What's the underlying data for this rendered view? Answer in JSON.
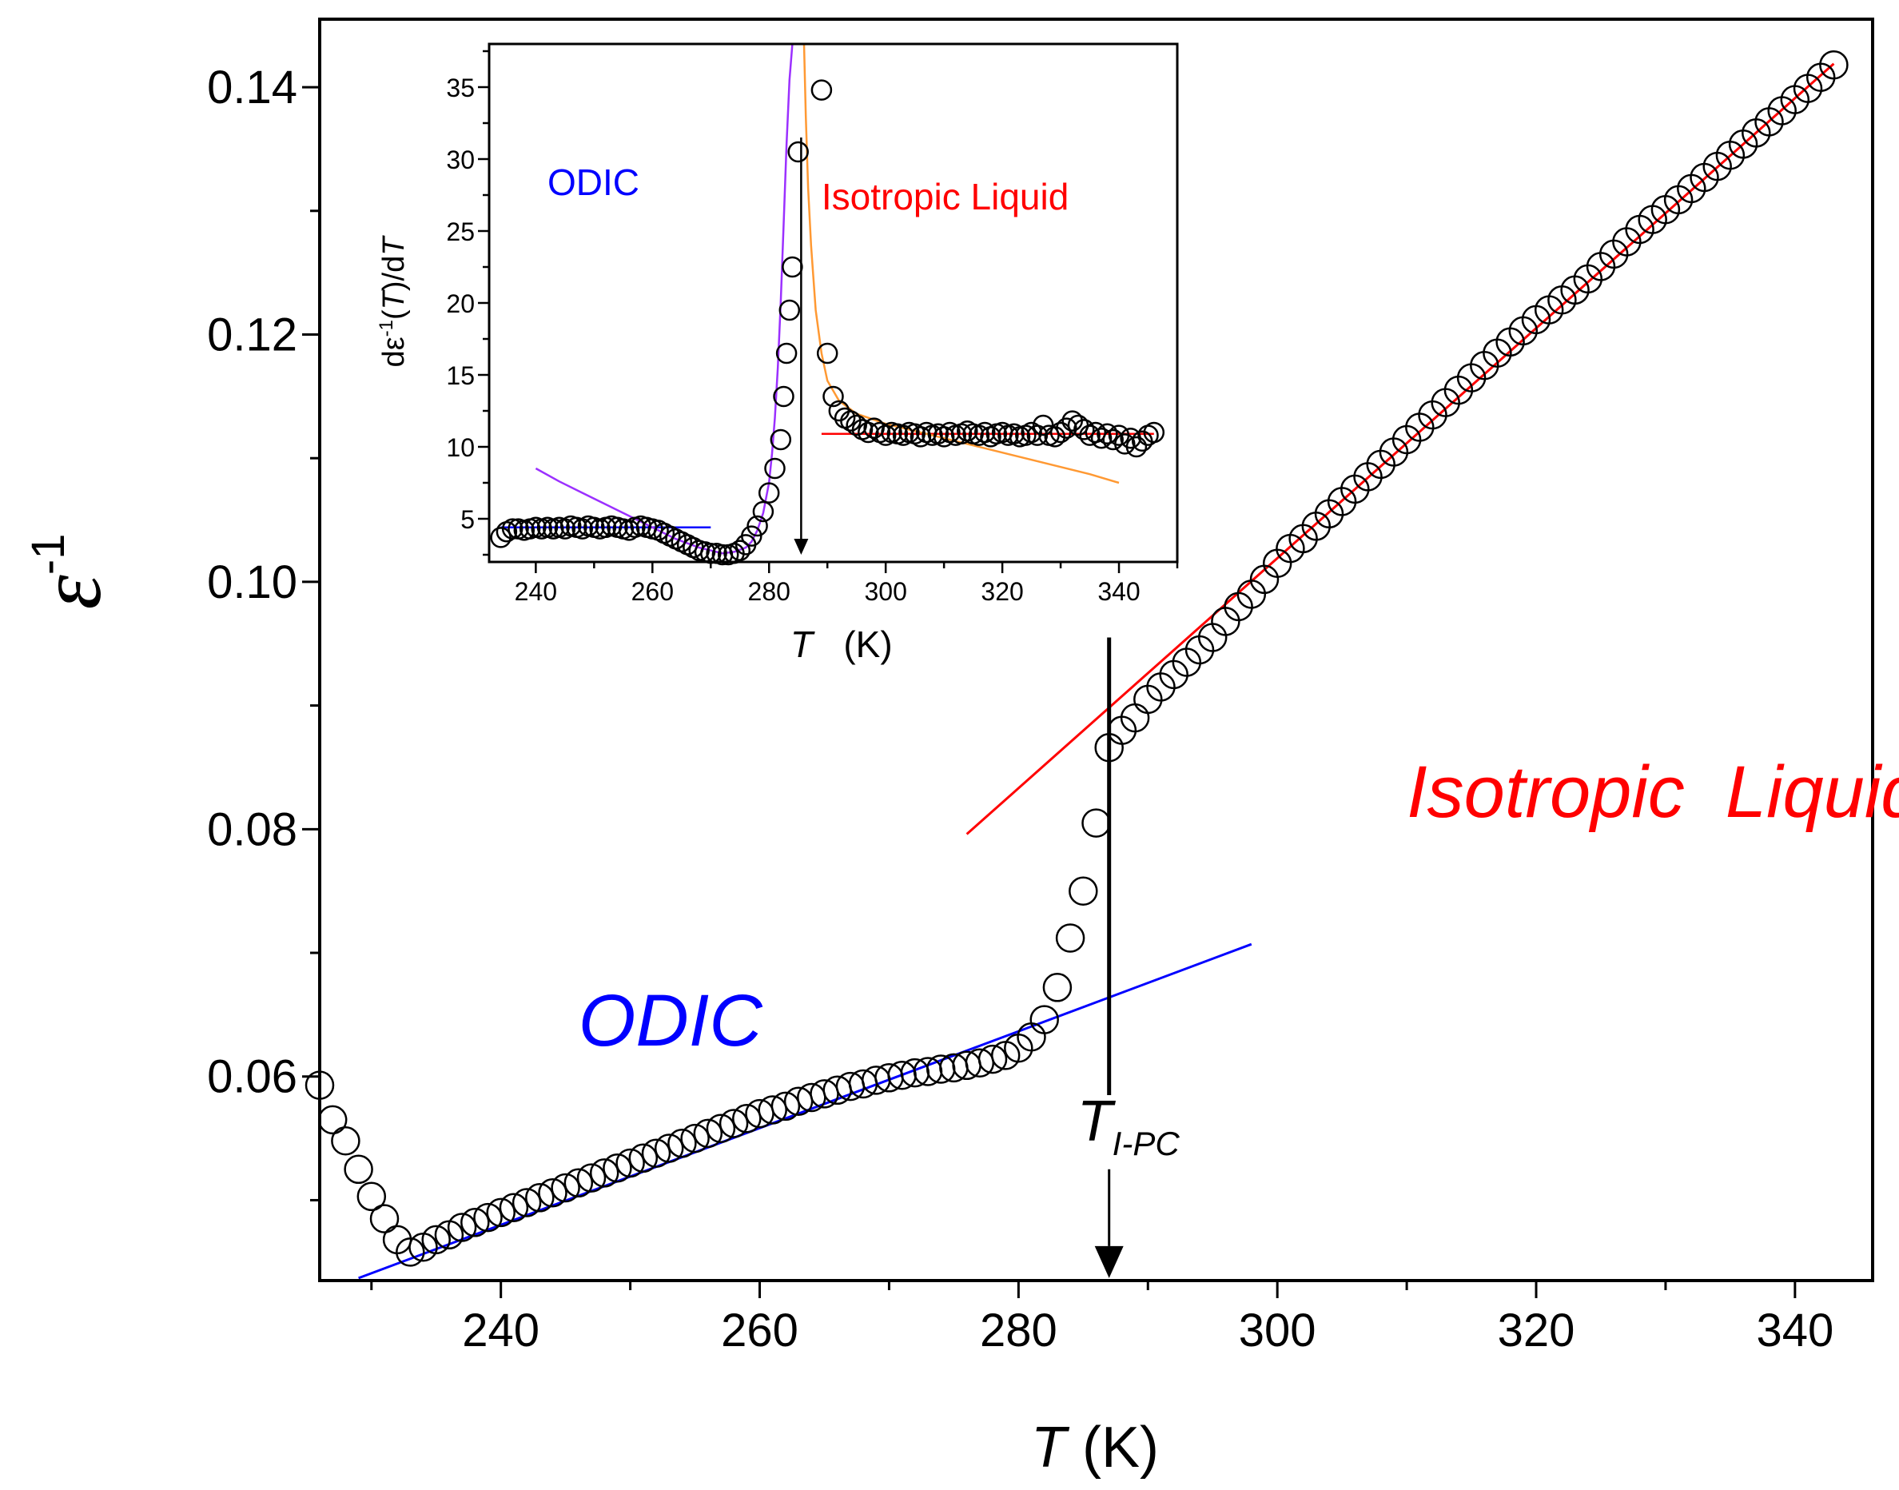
{
  "chart_data": [
    {
      "name": "main",
      "type": "scatter",
      "xlabel": {
        "italic": "T",
        "rest": " (K)"
      },
      "ylabel": {
        "base": "ε",
        "sup": "-1"
      },
      "xlim": [
        226,
        346
      ],
      "ylim": [
        0.0435,
        0.1455
      ],
      "xticks": [
        240,
        260,
        280,
        300,
        320,
        340
      ],
      "yticks": [
        0.06,
        0.08,
        0.1,
        0.12,
        0.14
      ],
      "ytick_labels": [
        "0.06",
        "0.08",
        "0.10",
        "0.12",
        "0.14"
      ],
      "series": [
        {
          "name": "data",
          "x": [
            226,
            227,
            228,
            229,
            230,
            231,
            232,
            233,
            234,
            235,
            236,
            237,
            238,
            239,
            240,
            241,
            242,
            243,
            244,
            245,
            246,
            247,
            248,
            249,
            250,
            251,
            252,
            253,
            254,
            255,
            256,
            257,
            258,
            259,
            260,
            261,
            262,
            263,
            264,
            265,
            266,
            267,
            268,
            269,
            270,
            271,
            272,
            273,
            274,
            275,
            276,
            277,
            278,
            279,
            280,
            281,
            282,
            283,
            284,
            285,
            286,
            287,
            288,
            289,
            290,
            291,
            292,
            293,
            294,
            295,
            296,
            297,
            298,
            299,
            300,
            301,
            302,
            303,
            304,
            305,
            306,
            307,
            308,
            309,
            310,
            311,
            312,
            313,
            314,
            315,
            316,
            317,
            318,
            319,
            320,
            321,
            322,
            323,
            324,
            325,
            326,
            327,
            328,
            329,
            330,
            331,
            332,
            333,
            334,
            335,
            336,
            337,
            338,
            339,
            340,
            341,
            342,
            343
          ],
          "y": [
            0.0593,
            0.0565,
            0.0548,
            0.0525,
            0.0503,
            0.0485,
            0.0468,
            0.0458,
            0.0462,
            0.0468,
            0.0472,
            0.0478,
            0.0482,
            0.0486,
            0.049,
            0.0494,
            0.0498,
            0.0502,
            0.0506,
            0.051,
            0.0514,
            0.0518,
            0.0522,
            0.0526,
            0.053,
            0.0534,
            0.0538,
            0.0542,
            0.0546,
            0.055,
            0.0554,
            0.0558,
            0.0562,
            0.0566,
            0.057,
            0.0573,
            0.0576,
            0.058,
            0.0583,
            0.0586,
            0.0589,
            0.0592,
            0.0594,
            0.0597,
            0.0599,
            0.0601,
            0.0603,
            0.0604,
            0.0606,
            0.0607,
            0.0609,
            0.0611,
            0.0614,
            0.0617,
            0.0623,
            0.0632,
            0.0646,
            0.0672,
            0.0712,
            0.075,
            0.0805,
            0.0866,
            0.088,
            0.089,
            0.0905,
            0.0915,
            0.0925,
            0.0935,
            0.0945,
            0.0955,
            0.0968,
            0.098,
            0.099,
            0.1002,
            0.1015,
            0.1027,
            0.1035,
            0.1045,
            0.1055,
            0.1065,
            0.1075,
            0.1085,
            0.1095,
            0.1105,
            0.1115,
            0.1125,
            0.1135,
            0.1145,
            0.1155,
            0.1165,
            0.1175,
            0.1185,
            0.1194,
            0.1203,
            0.1212,
            0.122,
            0.1228,
            0.1236,
            0.1245,
            0.1255,
            0.1265,
            0.1275,
            0.1285,
            0.1293,
            0.1301,
            0.1309,
            0.1318,
            0.1327,
            0.1336,
            0.1345,
            0.1354,
            0.1363,
            0.1372,
            0.1381,
            0.139,
            0.1399,
            0.1408,
            0.1418
          ]
        },
        {
          "name": "ODIC fit",
          "color": "#0000ff",
          "x": [
            229,
            298
          ],
          "y": [
            0.0437,
            0.0707
          ]
        },
        {
          "name": "Isotropic Liquid fit",
          "color": "#ff0000",
          "x": [
            276,
            343
          ],
          "y": [
            0.0796,
            0.1419
          ]
        }
      ],
      "annotations": [
        {
          "text": "ODIC",
          "color": "#0000ff",
          "x": 246,
          "y": 0.0625
        },
        {
          "text": "Isotropic  Liquid",
          "color": "#ff0000",
          "x": 310,
          "y": 0.081
        },
        {
          "text": "T",
          "sub": "I-PC",
          "color": "#000000",
          "x": 287,
          "y": 0.0548
        },
        {
          "type": "vline",
          "x": 287,
          "y_from": 0.0955,
          "y_to": 0.0585
        },
        {
          "type": "arrow",
          "x": 287,
          "y_from": 0.0525,
          "y_to": 0.0437
        }
      ]
    },
    {
      "name": "inset",
      "type": "scatter",
      "xlabel": {
        "italic": "T",
        "rest": "   (K)"
      },
      "ylabel": {
        "prefix": "dε",
        "sup": "-1",
        "mid": "(",
        "italic": "T",
        "mid2": ")/d",
        "italic2": "T"
      },
      "xlim": [
        232,
        350
      ],
      "ylim": [
        2,
        38
      ],
      "xticks": [
        240,
        260,
        280,
        300,
        320,
        340
      ],
      "yticks": [
        5,
        10,
        15,
        20,
        25,
        30,
        35
      ],
      "series": [
        {
          "name": "data",
          "x": [
            234,
            235,
            236,
            237,
            238,
            239,
            240,
            241,
            242,
            243,
            244,
            245,
            246,
            247,
            248,
            249,
            250,
            251,
            252,
            253,
            254,
            255,
            256,
            257,
            258,
            259,
            260,
            261,
            262,
            263,
            264,
            265,
            266,
            267,
            268,
            269,
            270,
            271,
            272,
            273,
            274,
            275,
            276,
            277,
            278,
            279,
            280,
            281,
            282,
            282.5,
            283,
            283.5,
            284,
            285,
            289,
            290,
            291,
            292,
            293,
            294,
            295,
            296,
            297,
            298,
            299,
            300,
            301,
            302,
            303,
            304,
            305,
            306,
            307,
            308,
            309,
            310,
            311,
            312,
            313,
            314,
            315,
            316,
            317,
            318,
            319,
            320,
            321,
            322,
            323,
            324,
            325,
            326,
            327,
            328,
            329,
            330,
            331,
            332,
            333,
            334,
            335,
            336,
            337,
            338,
            339,
            340,
            341,
            342,
            343,
            344,
            345,
            346
          ],
          "y": [
            3.7,
            4.1,
            4.3,
            4.3,
            4.2,
            4.3,
            4.4,
            4.3,
            4.4,
            4.3,
            4.4,
            4.3,
            4.5,
            4.4,
            4.3,
            4.5,
            4.4,
            4.3,
            4.4,
            4.5,
            4.4,
            4.3,
            4.2,
            4.4,
            4.5,
            4.4,
            4.3,
            4.2,
            4.0,
            3.8,
            3.6,
            3.4,
            3.2,
            3.0,
            2.8,
            2.7,
            2.6,
            2.6,
            2.5,
            2.5,
            2.6,
            2.8,
            3.2,
            3.8,
            4.5,
            5.5,
            6.8,
            8.5,
            10.5,
            13.5,
            16.5,
            19.5,
            22.5,
            30.5,
            34.8,
            16.5,
            13.5,
            12.5,
            12.0,
            11.8,
            11.5,
            11.2,
            11.0,
            11.3,
            11.0,
            10.8,
            11.0,
            10.9,
            10.8,
            11.0,
            10.9,
            10.7,
            11.0,
            10.8,
            10.9,
            10.7,
            11.0,
            10.8,
            10.9,
            11.1,
            10.9,
            10.8,
            11.0,
            10.7,
            10.9,
            11.0,
            10.8,
            10.9,
            10.7,
            10.8,
            11.0,
            10.8,
            11.5,
            10.8,
            10.7,
            11.0,
            11.3,
            11.8,
            11.5,
            11.2,
            10.8,
            11.0,
            10.6,
            10.9,
            10.5,
            10.8,
            10.2,
            10.6,
            10.0,
            10.4,
            10.8,
            11.0
          ]
        },
        {
          "name": "ODIC fit",
          "color": "#0000ff",
          "x": [
            234,
            270
          ],
          "y": [
            4.4,
            4.4
          ]
        },
        {
          "name": "Isotropic Liquid fit",
          "color": "#ff0000",
          "x": [
            289,
            346
          ],
          "y": [
            10.9,
            10.9
          ]
        },
        {
          "name": "ODIC critical fit",
          "color": "#9b30ff",
          "x": [
            240,
            244,
            248,
            252,
            256,
            260,
            264,
            268,
            272,
            274,
            276,
            277,
            278,
            279,
            280,
            280.5,
            281,
            281.5,
            282,
            282.5,
            283,
            283.5,
            284
          ],
          "y": [
            8.5,
            7.6,
            6.8,
            6.0,
            5.2,
            4.4,
            3.6,
            3.0,
            2.6,
            2.7,
            3.0,
            3.4,
            4.2,
            5.4,
            7.5,
            9.5,
            12.0,
            15.5,
            20.0,
            25.5,
            31.0,
            35.5,
            38.0
          ]
        },
        {
          "name": "Isotropic critical fit",
          "color": "#ff9933",
          "x": [
            286,
            286.3,
            286.7,
            287.2,
            288,
            289,
            290,
            292,
            295,
            300,
            305,
            310,
            315,
            320,
            325,
            330,
            335,
            340
          ],
          "y": [
            38,
            33,
            28,
            24,
            19.5,
            16.5,
            14.6,
            13.2,
            12.3,
            11.6,
            11.1,
            10.6,
            10.1,
            9.6,
            9.1,
            8.6,
            8.1,
            7.5
          ]
        }
      ],
      "annotations": [
        {
          "text": "ODIC",
          "color": "#0000ff",
          "x": 242,
          "y": 27.5
        },
        {
          "text": "Isotropic Liquid",
          "color": "#ff0000",
          "x": 289,
          "y": 26.5
        },
        {
          "type": "arrow",
          "x": 285.5,
          "y_from": 31.5,
          "y_to": 2.5
        }
      ]
    }
  ]
}
